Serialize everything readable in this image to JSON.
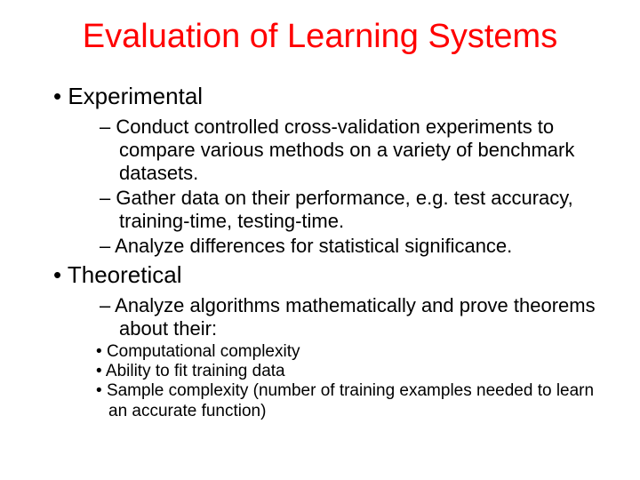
{
  "title": "Evaluation of Learning Systems",
  "title_color": "#ff0000",
  "text_color": "#000000",
  "background_color": "#ffffff",
  "title_fontsize": 38,
  "l1_fontsize": 26,
  "l2_fontsize": 22,
  "l3_fontsize": 19,
  "sections": [
    {
      "heading": "Experimental",
      "items": [
        "Conduct controlled cross-validation experiments to compare various methods on a variety of benchmark datasets.",
        "Gather data on their performance, e.g. test accuracy, training-time, testing-time.",
        "Analyze differences for statistical significance."
      ]
    },
    {
      "heading": "Theoretical",
      "items": [
        "Analyze algorithms mathematically and prove theorems about their:"
      ],
      "subitems": [
        "Computational complexity",
        "Ability to fit training data",
        "Sample complexity (number of training examples needed to learn an accurate function)"
      ]
    }
  ]
}
